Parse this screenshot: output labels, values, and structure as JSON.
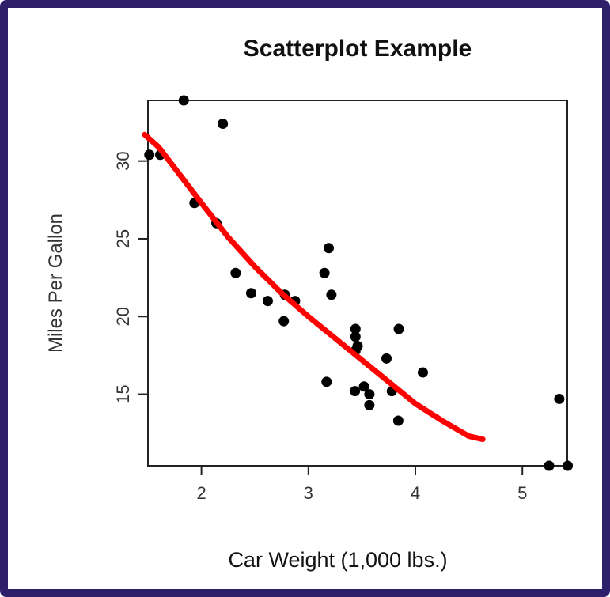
{
  "chart_data": {
    "type": "scatter",
    "title": "Scatterplot Example",
    "xlabel": "Car Weight (1,000 lbs.)",
    "ylabel": "Miles Per Gallon",
    "xlim": [
      1.5,
      5.42
    ],
    "ylim": [
      10.4,
      33.9
    ],
    "xticks": [
      2,
      3,
      4,
      5
    ],
    "yticks": [
      15,
      20,
      25,
      30
    ],
    "grid": false,
    "point_color": "#000000",
    "fit_color": "#ff0000",
    "points": [
      {
        "x": 1.513,
        "y": 30.4
      },
      {
        "x": 1.615,
        "y": 30.4
      },
      {
        "x": 1.835,
        "y": 33.9
      },
      {
        "x": 1.935,
        "y": 27.3
      },
      {
        "x": 2.14,
        "y": 26.0
      },
      {
        "x": 2.2,
        "y": 32.4
      },
      {
        "x": 2.32,
        "y": 22.8
      },
      {
        "x": 2.465,
        "y": 21.5
      },
      {
        "x": 2.62,
        "y": 21.0
      },
      {
        "x": 2.77,
        "y": 19.7
      },
      {
        "x": 2.78,
        "y": 21.4
      },
      {
        "x": 2.875,
        "y": 21.0
      },
      {
        "x": 3.15,
        "y": 22.8
      },
      {
        "x": 3.17,
        "y": 15.8
      },
      {
        "x": 3.19,
        "y": 24.4
      },
      {
        "x": 3.215,
        "y": 21.4
      },
      {
        "x": 3.435,
        "y": 15.2
      },
      {
        "x": 3.44,
        "y": 18.7
      },
      {
        "x": 3.44,
        "y": 19.2
      },
      {
        "x": 3.44,
        "y": 17.8
      },
      {
        "x": 3.46,
        "y": 18.1
      },
      {
        "x": 3.52,
        "y": 15.5
      },
      {
        "x": 3.57,
        "y": 14.3
      },
      {
        "x": 3.57,
        "y": 15.0
      },
      {
        "x": 3.73,
        "y": 17.3
      },
      {
        "x": 3.78,
        "y": 15.2
      },
      {
        "x": 3.84,
        "y": 13.3
      },
      {
        "x": 3.845,
        "y": 19.2
      },
      {
        "x": 4.07,
        "y": 16.4
      },
      {
        "x": 5.25,
        "y": 10.4
      },
      {
        "x": 5.345,
        "y": 14.7
      },
      {
        "x": 5.424,
        "y": 10.4
      }
    ],
    "fit_line": [
      {
        "x": 1.47,
        "y": 31.7
      },
      {
        "x": 1.6,
        "y": 30.9
      },
      {
        "x": 1.8,
        "y": 29.1
      },
      {
        "x": 2.0,
        "y": 27.3
      },
      {
        "x": 2.25,
        "y": 25.1
      },
      {
        "x": 2.5,
        "y": 23.2
      },
      {
        "x": 2.75,
        "y": 21.5
      },
      {
        "x": 3.0,
        "y": 20.0
      },
      {
        "x": 3.25,
        "y": 18.6
      },
      {
        "x": 3.5,
        "y": 17.2
      },
      {
        "x": 3.75,
        "y": 15.8
      },
      {
        "x": 4.0,
        "y": 14.4
      },
      {
        "x": 4.25,
        "y": 13.3
      },
      {
        "x": 4.5,
        "y": 12.3
      },
      {
        "x": 4.63,
        "y": 12.1
      }
    ]
  }
}
